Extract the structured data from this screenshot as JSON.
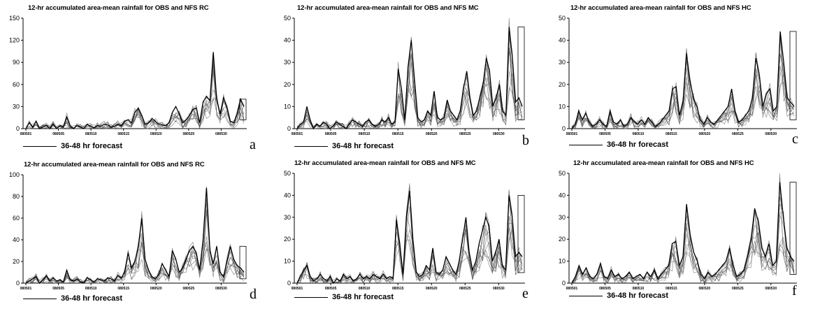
{
  "legend_text": "36-48 hr forecast",
  "x_ticks": [
    "080501",
    "080505",
    "080510",
    "080515",
    "080520",
    "080525",
    "080530"
  ],
  "chart_data": [
    {
      "label": "a",
      "type": "line",
      "title": "12-hr accumulated area-mean rainfall for OBS and NFS RC",
      "ylim": [
        0,
        150
      ],
      "yticks": [
        0,
        30,
        60,
        90,
        120,
        150
      ],
      "legend": "36-48 hr forecast",
      "obs": [
        0,
        8,
        2,
        10,
        0,
        2,
        5,
        0,
        6,
        0,
        4,
        2,
        16,
        3,
        0,
        4,
        2,
        0,
        6,
        3,
        1,
        4,
        3,
        6,
        5,
        2,
        3,
        6,
        4,
        10,
        12,
        8,
        22,
        28,
        18,
        6,
        8,
        14,
        10,
        6,
        5,
        4,
        8,
        22,
        30,
        20,
        8,
        12,
        18,
        26,
        28,
        8,
        36,
        44,
        38,
        104,
        40,
        20,
        42,
        30,
        10,
        8,
        20,
        40,
        30
      ]
    },
    {
      "label": "b",
      "type": "line",
      "title": "12-hr accumulated area-mean rainfall for OBS and NFS MC",
      "ylim": [
        0,
        50
      ],
      "yticks": [
        0,
        10,
        20,
        30,
        40,
        50
      ],
      "legend": "36-48 hr forecast",
      "obs": [
        0,
        2,
        3,
        10,
        4,
        0,
        2,
        1,
        3,
        2,
        0,
        1,
        3,
        2,
        1,
        0,
        2,
        4,
        3,
        2,
        1,
        3,
        4,
        2,
        1,
        2,
        4,
        3,
        5,
        2,
        3,
        27,
        18,
        4,
        28,
        40,
        22,
        5,
        3,
        4,
        8,
        6,
        17,
        5,
        4,
        5,
        13,
        8,
        6,
        4,
        8,
        18,
        26,
        14,
        6,
        8,
        14,
        20,
        32,
        26,
        10,
        14,
        20,
        8,
        6,
        46,
        32,
        12,
        14,
        10
      ]
    },
    {
      "label": "c",
      "type": "line",
      "title": "12-hr accumulated area-mean rainfall for OBS and NFS HC",
      "ylim": [
        0,
        50
      ],
      "yticks": [
        0,
        10,
        20,
        30,
        40,
        50
      ],
      "legend": "36-48 hr forecast",
      "obs": [
        0,
        2,
        8,
        4,
        7,
        3,
        1,
        2,
        4,
        2,
        1,
        8,
        3,
        2,
        4,
        1,
        2,
        5,
        3,
        2,
        4,
        2,
        5,
        3,
        1,
        2,
        4,
        6,
        8,
        18,
        19,
        6,
        12,
        34,
        22,
        14,
        10,
        4,
        2,
        5,
        3,
        2,
        4,
        6,
        8,
        10,
        18,
        8,
        3,
        4,
        6,
        8,
        14,
        32,
        24,
        10,
        16,
        18,
        8,
        10,
        44,
        30,
        14,
        12,
        10
      ]
    },
    {
      "label": "d",
      "type": "line",
      "title": "12-hr accumulated area-mean rainfall for OBS and NFS RC",
      "ylim": [
        0,
        100
      ],
      "yticks": [
        0,
        20,
        40,
        60,
        80,
        100
      ],
      "legend": "36-48 hr forecast",
      "obs": [
        0,
        2,
        4,
        6,
        0,
        3,
        7,
        2,
        5,
        2,
        3,
        1,
        12,
        3,
        2,
        4,
        1,
        0,
        5,
        3,
        1,
        4,
        3,
        2,
        5,
        4,
        2,
        7,
        5,
        10,
        28,
        14,
        20,
        34,
        60,
        22,
        12,
        6,
        4,
        8,
        18,
        12,
        6,
        30,
        22,
        10,
        14,
        22,
        30,
        34,
        28,
        12,
        40,
        88,
        30,
        18,
        34,
        10,
        6,
        20,
        34,
        22,
        16,
        14,
        10
      ]
    },
    {
      "label": "e",
      "type": "line",
      "title": "12-hr accumulated area-mean rainfall for OBS and NFS MC",
      "ylim": [
        0,
        50
      ],
      "yticks": [
        0,
        10,
        20,
        30,
        40,
        50
      ],
      "legend": "36-48 hr forecast",
      "obs": [
        0,
        3,
        6,
        8,
        3,
        1,
        2,
        4,
        2,
        1,
        3,
        0,
        2,
        1,
        4,
        2,
        3,
        1,
        2,
        4,
        2,
        3,
        2,
        4,
        3,
        2,
        4,
        2,
        3,
        2,
        29,
        18,
        4,
        30,
        42,
        20,
        5,
        3,
        4,
        8,
        6,
        16,
        5,
        4,
        6,
        12,
        9,
        6,
        4,
        10,
        20,
        30,
        14,
        6,
        10,
        18,
        24,
        30,
        26,
        10,
        14,
        20,
        8,
        6,
        40,
        30,
        12,
        14,
        12
      ]
    },
    {
      "label": "f",
      "type": "line",
      "title": "12-hr accumulated area-mean rainfall for OBS and NFS HC",
      "ylim": [
        0,
        50
      ],
      "yticks": [
        0,
        10,
        20,
        30,
        40,
        50
      ],
      "legend": "36-48 hr forecast",
      "obs": [
        0,
        3,
        8,
        4,
        7,
        3,
        2,
        4,
        9,
        3,
        2,
        6,
        3,
        4,
        2,
        3,
        5,
        2,
        3,
        4,
        2,
        5,
        3,
        6,
        2,
        4,
        6,
        8,
        18,
        19,
        8,
        12,
        36,
        22,
        14,
        10,
        4,
        2,
        5,
        3,
        4,
        6,
        8,
        10,
        16,
        8,
        3,
        4,
        6,
        12,
        20,
        34,
        28,
        16,
        12,
        18,
        8,
        10,
        46,
        30,
        16,
        12,
        10
      ]
    }
  ]
}
